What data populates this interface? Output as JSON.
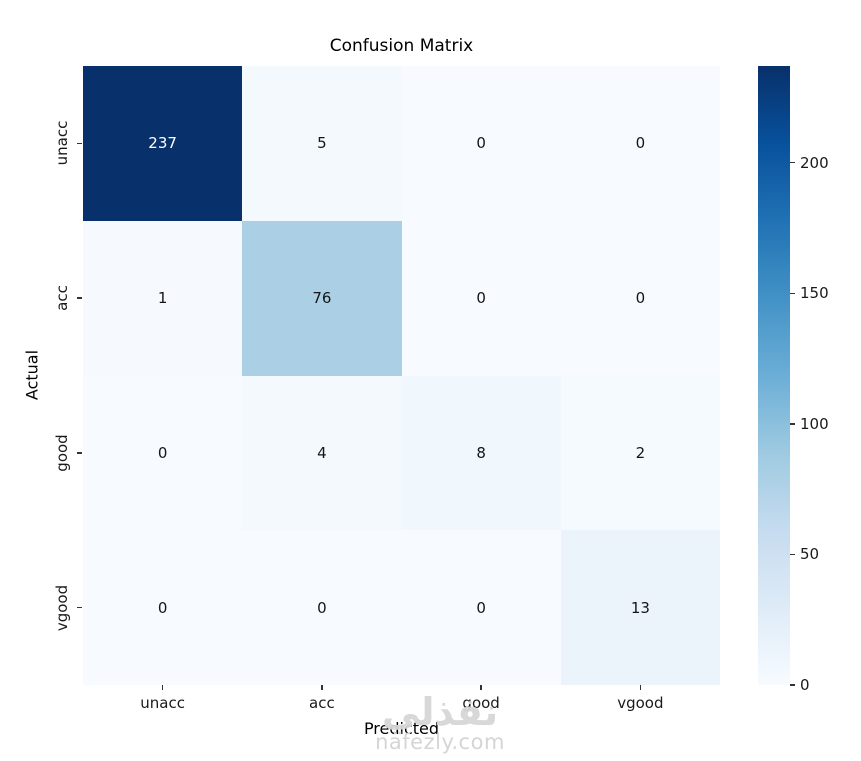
{
  "page": {
    "background": "#ffffff"
  },
  "chart_data": {
    "type": "heatmap",
    "title": "Confusion Matrix",
    "xlabel": "Predicted",
    "ylabel": "Actual",
    "x_categories": [
      "unacc",
      "acc",
      "good",
      "vgood"
    ],
    "y_categories": [
      "unacc",
      "acc",
      "good",
      "vgood"
    ],
    "matrix": [
      [
        237,
        5,
        0,
        0
      ],
      [
        1,
        76,
        0,
        0
      ],
      [
        0,
        4,
        8,
        2
      ],
      [
        0,
        0,
        0,
        13
      ]
    ],
    "vmin": 0,
    "vmax": 237,
    "colormap": "Blues",
    "cell_colors": [
      [
        "#08306b",
        "#f3f9fd",
        "#f7fbff",
        "#f7fbff"
      ],
      [
        "#f6faff",
        "#abd0e6",
        "#f7fbff",
        "#f7fbff"
      ],
      [
        "#f7fbff",
        "#f4f9fe",
        "#f0f7fd",
        "#f5fafe"
      ],
      [
        "#f7fbff",
        "#f7fbff",
        "#f7fbff",
        "#ecf4fb"
      ]
    ],
    "cell_text_colors": [
      [
        "#ffffff",
        "#151515",
        "#151515",
        "#151515"
      ],
      [
        "#151515",
        "#151515",
        "#151515",
        "#151515"
      ],
      [
        "#151515",
        "#151515",
        "#151515",
        "#151515"
      ],
      [
        "#151515",
        "#151515",
        "#151515",
        "#151515"
      ]
    ],
    "legend_position": "right-colorbar",
    "grid": false,
    "colorbar": {
      "ticks": [
        "0",
        "50",
        "100",
        "150",
        "200"
      ],
      "tick_values": [
        0,
        50,
        100,
        150,
        200
      ],
      "gradient_stops": [
        "#f7fbff",
        "#deebf7",
        "#c6dbef",
        "#9ecae1",
        "#6baed6",
        "#4292c6",
        "#2171b5",
        "#08519c",
        "#08306b"
      ]
    }
  },
  "watermark": {
    "logo_text": "نفذلي",
    "site_text": "nafezly.com",
    "color": "#d6d6d6"
  }
}
